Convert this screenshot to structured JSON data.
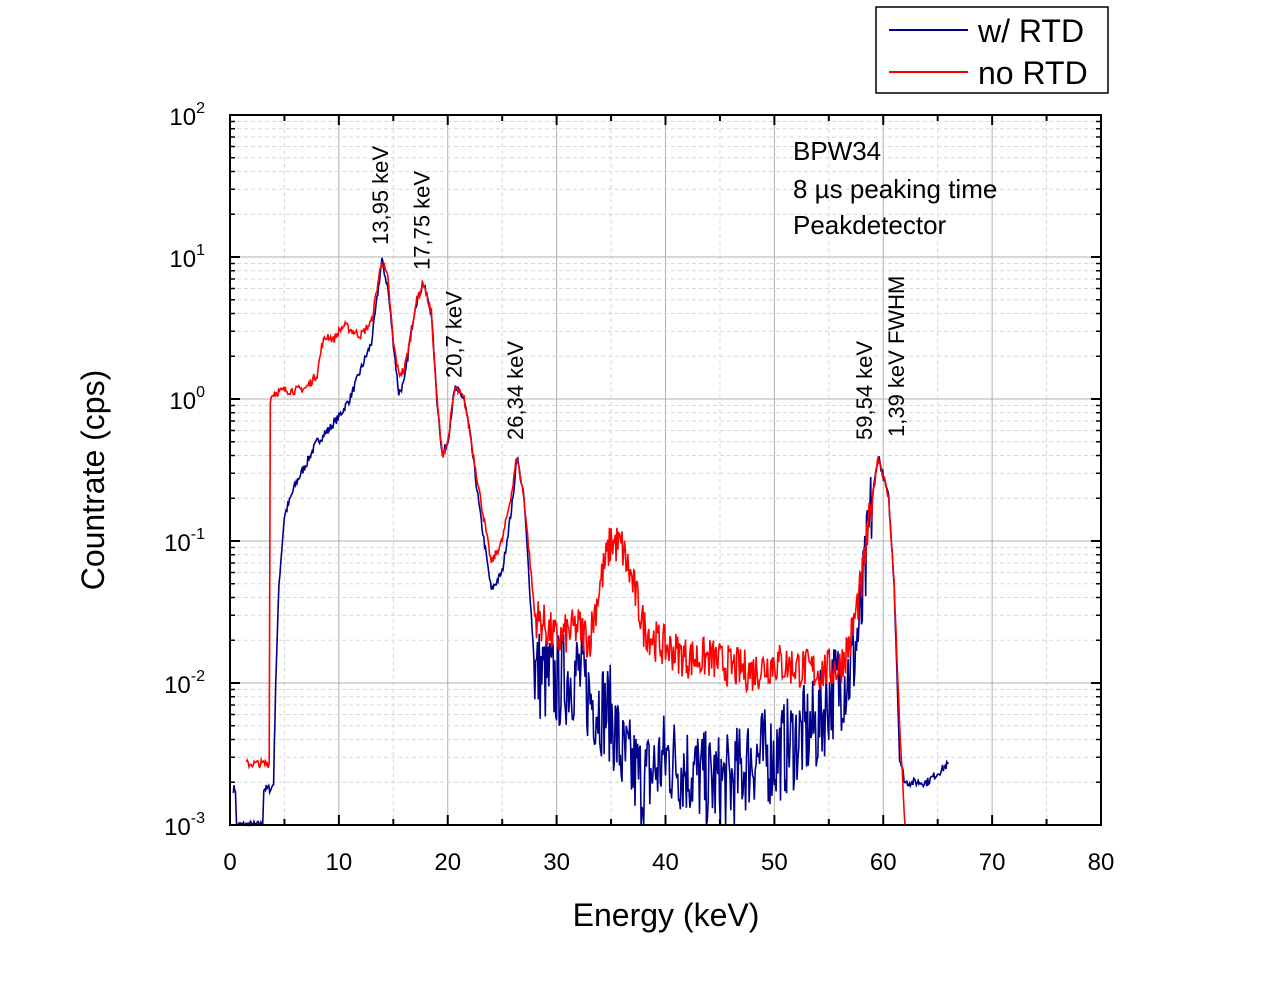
{
  "chart_data": {
    "type": "line",
    "xlabel": "Energy (keV)",
    "ylabel": "Countrate (cps)",
    "xlim": [
      0,
      80
    ],
    "ylim": [
      0.001,
      100
    ],
    "yscale": "log",
    "xticks": [
      "0",
      "10",
      "20",
      "30",
      "40",
      "50",
      "60",
      "70",
      "80"
    ],
    "yticks": [
      {
        "base": "10",
        "exp": "-3"
      },
      {
        "base": "10",
        "exp": "-2"
      },
      {
        "base": "10",
        "exp": "-1"
      },
      {
        "base": "10",
        "exp": "0"
      },
      {
        "base": "10",
        "exp": "1"
      },
      {
        "base": "10",
        "exp": "2"
      }
    ],
    "grid": true,
    "legend_position": "top-right",
    "series": [
      {
        "name": "w/ RTD",
        "color": "#00008b",
        "x": [
          0.3,
          0.5,
          0.6,
          3.0,
          3.1,
          3.8,
          4.0,
          4.2,
          4.5,
          5,
          6,
          7,
          8,
          9,
          10,
          11,
          12,
          13,
          13.5,
          13.95,
          14.5,
          15,
          15.5,
          16,
          16.5,
          17,
          17.75,
          18.5,
          19,
          19.5,
          20,
          20.5,
          20.7,
          21.5,
          22,
          23,
          24,
          25,
          26,
          26.34,
          27,
          27.5,
          28,
          30,
          32,
          33,
          35,
          36,
          38,
          40,
          42,
          44,
          46,
          48,
          50,
          52,
          54,
          55,
          56,
          57,
          58,
          59,
          59.54,
          60.5,
          61,
          61.5,
          62,
          64,
          66
        ],
        "y": [
          0.0018,
          0.0018,
          0.001,
          0.001,
          0.0018,
          0.0018,
          0.002,
          0.01,
          0.05,
          0.15,
          0.25,
          0.35,
          0.5,
          0.6,
          0.75,
          1.0,
          1.6,
          2.5,
          5,
          9.5,
          6,
          2.5,
          1.1,
          1.3,
          2.5,
          4.5,
          6.5,
          4,
          1,
          0.4,
          0.5,
          1.0,
          1.2,
          1.0,
          0.6,
          0.15,
          0.045,
          0.06,
          0.2,
          0.4,
          0.2,
          0.05,
          0.012,
          0.01,
          0.012,
          0.008,
          0.006,
          0.003,
          0.002,
          0.003,
          0.0025,
          0.002,
          0.002,
          0.003,
          0.003,
          0.004,
          0.005,
          0.008,
          0.01,
          0.012,
          0.03,
          0.2,
          0.4,
          0.2,
          0.05,
          0.003,
          0.002,
          0.002,
          0.0027
        ]
      },
      {
        "name": "no RTD",
        "color": "#ff0000",
        "x": [
          1.5,
          3.6,
          3.7,
          4,
          5,
          6,
          7,
          8,
          8.5,
          9,
          9.5,
          10,
          10.5,
          11,
          12,
          13,
          13.5,
          13.95,
          14.5,
          15,
          15.5,
          16,
          16.5,
          17,
          17.75,
          18.5,
          19,
          19.5,
          20,
          20.5,
          20.7,
          21.5,
          22,
          23,
          24,
          25,
          26,
          26.34,
          27,
          27.5,
          28,
          29,
          30,
          32,
          33,
          34,
          35,
          36,
          37,
          38,
          39,
          40,
          42,
          44,
          46,
          48,
          50,
          52,
          54,
          56,
          57,
          58,
          59,
          59.54,
          60.5,
          61,
          61.5,
          62
        ],
        "y": [
          0.0027,
          0.0027,
          1.0,
          1.1,
          1.15,
          1.15,
          1.2,
          1.5,
          2.5,
          2.8,
          2.6,
          3.0,
          3.3,
          3.1,
          2.8,
          3.5,
          6,
          9.5,
          7,
          2.5,
          1.5,
          1.6,
          2.5,
          4.5,
          6.7,
          4,
          1,
          0.4,
          0.5,
          1.0,
          1.2,
          1.0,
          0.6,
          0.2,
          0.07,
          0.1,
          0.25,
          0.4,
          0.2,
          0.08,
          0.03,
          0.025,
          0.02,
          0.025,
          0.02,
          0.05,
          0.1,
          0.09,
          0.05,
          0.025,
          0.02,
          0.018,
          0.015,
          0.015,
          0.013,
          0.012,
          0.014,
          0.013,
          0.012,
          0.013,
          0.02,
          0.05,
          0.2,
          0.4,
          0.2,
          0.05,
          0.005,
          0.001
        ]
      }
    ],
    "annotations": [
      {
        "text": "13,95 keV",
        "x": 13.95
      },
      {
        "text": "17,75 keV",
        "x": 17.75
      },
      {
        "text": "20,7 keV",
        "x": 20.7
      },
      {
        "text": "26,34 keV",
        "x": 26.34
      },
      {
        "text": "59,54 keV",
        "x": 59.54
      },
      {
        "text": "1,39 keV FWHM",
        "x": 60.6
      }
    ],
    "info_lines": [
      "BPW34",
      "8 µs peaking time",
      "Peakdetector"
    ]
  }
}
